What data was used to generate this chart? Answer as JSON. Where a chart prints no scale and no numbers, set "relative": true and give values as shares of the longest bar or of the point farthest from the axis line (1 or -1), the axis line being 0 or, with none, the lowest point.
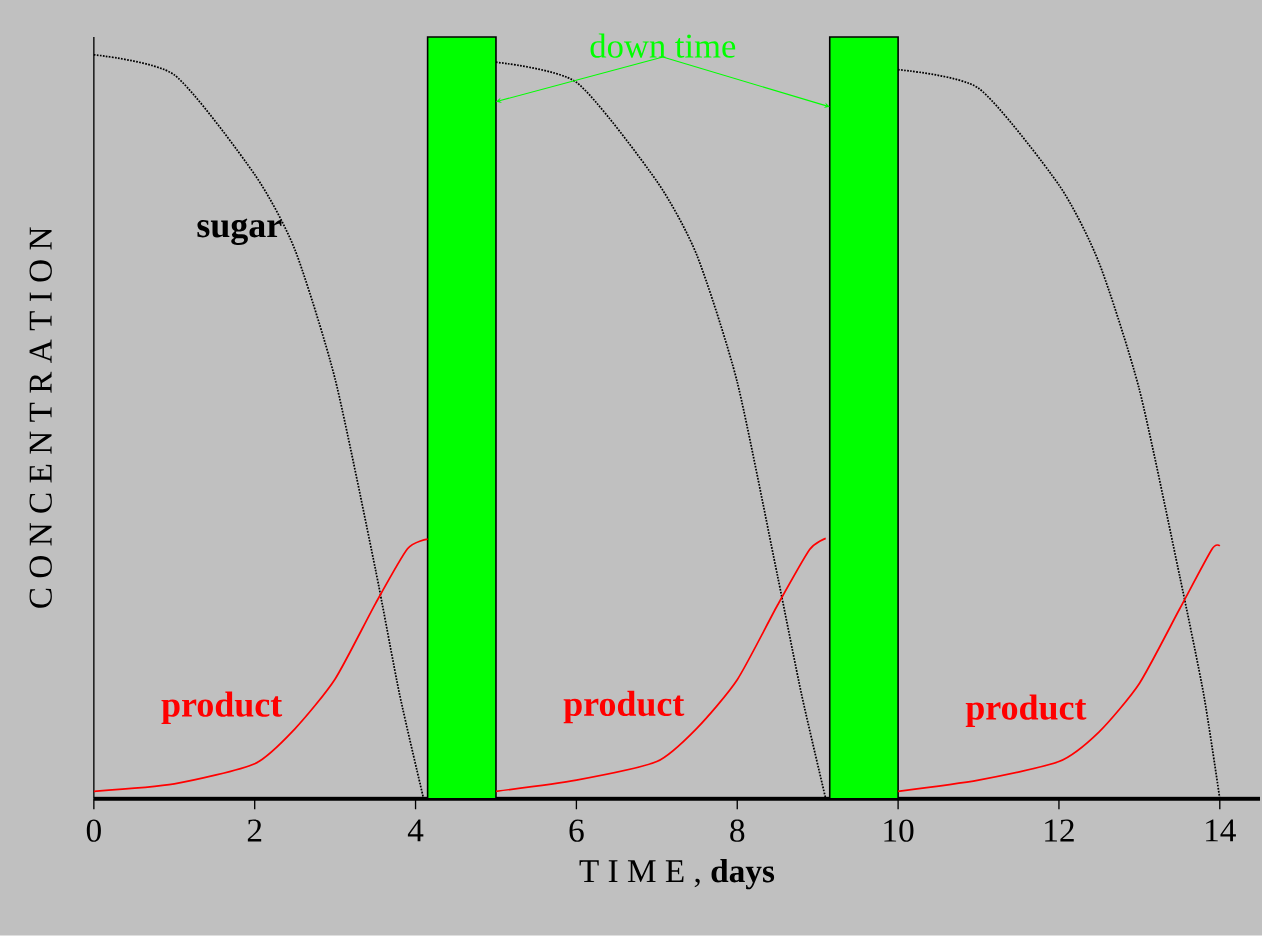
{
  "chart_data": {
    "type": "line",
    "relative": true,
    "xlabel": "T I M E ,  **days**",
    "ylabel": "C O N C E N T R A T I O N",
    "xlim": [
      0,
      14.5
    ],
    "xticks": [
      0,
      2,
      4,
      6,
      8,
      10,
      12,
      14
    ],
    "tick_labels": "x",
    "series": [
      {
        "name": "sugar",
        "color": "#000000",
        "line_style": "dotted",
        "x": [
          0,
          1,
          2,
          2.5,
          3,
          3.5,
          3.8,
          4.1,
          4.5,
          5,
          6,
          7,
          7.5,
          8,
          8.5,
          8.8,
          9.1,
          9.5,
          10,
          11,
          12,
          12.5,
          13,
          13.5,
          13.8,
          14
        ],
        "values": [
          1.0,
          0.973,
          0.839,
          0.738,
          0.564,
          0.309,
          0.141,
          0,
          null,
          0.99,
          0.963,
          0.83,
          0.73,
          0.56,
          0.3,
          0.14,
          0,
          null,
          0.98,
          0.955,
          0.825,
          0.72,
          0.55,
          0.3,
          0.14,
          0
        ]
      },
      {
        "name": "product",
        "color": "#ff0000",
        "x": [
          0,
          1,
          2,
          2.5,
          3,
          3.5,
          3.9,
          4.15
        ],
        "values": [
          0.01,
          0.02,
          0.047,
          0.094,
          0.161,
          0.262,
          0.336,
          0.349
        ]
      },
      {
        "name": "product",
        "color": "#ff0000",
        "x": [
          5,
          6,
          7,
          7.5,
          8,
          8.5,
          8.9,
          9.1
        ],
        "values": [
          0.01,
          0.025,
          0.05,
          0.095,
          0.16,
          0.26,
          0.335,
          0.35
        ]
      },
      {
        "name": "product",
        "color": "#ff0000",
        "x": [
          10,
          11,
          12,
          12.5,
          13,
          13.5,
          13.9,
          14
        ],
        "values": [
          0.01,
          0.025,
          0.05,
          0.09,
          0.155,
          0.255,
          0.335,
          0.34
        ]
      }
    ],
    "bands": [
      {
        "axis": "x",
        "from": 4.15,
        "to": 5.0,
        "color": "#00ff00"
      },
      {
        "axis": "x",
        "from": 9.15,
        "to": 10.0,
        "color": "#00ff00"
      }
    ],
    "annotations": [
      "down time"
    ]
  }
}
